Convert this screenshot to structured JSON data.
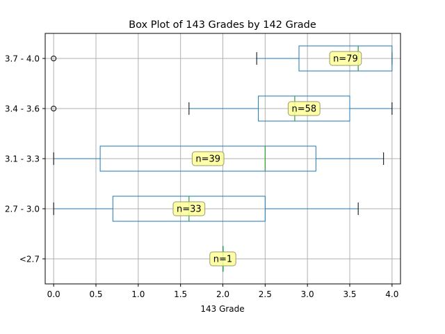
{
  "chart_data": {
    "type": "box",
    "orientation": "horizontal",
    "title": "Box Plot of 143 Grades by 142 Grade",
    "xlabel": "143 Grade",
    "ylabel": "",
    "xlim": [
      -0.1,
      4.1
    ],
    "xticks": [
      0.0,
      0.5,
      1.0,
      1.5,
      2.0,
      2.5,
      3.0,
      3.5,
      4.0
    ],
    "xtick_labels": [
      "0.0",
      "0.5",
      "1.0",
      "1.5",
      "2.0",
      "2.5",
      "3.0",
      "3.5",
      "4.0"
    ],
    "grid": true,
    "colors": {
      "box": "#1f77b4",
      "median": "#2ca02c",
      "grid": "#b0b0b0",
      "annotation_fill": "#ffff99",
      "annotation_stroke": "#9a9a6a"
    },
    "categories": [
      "<2.7",
      "2.7 - 3.0",
      "3.1 - 3.3",
      "3.4 - 3.6",
      "3.7 - 4.0"
    ],
    "category_labels": [
      "<2.7",
      "2.7 - 3.0",
      "3.1 - 3.3",
      "3.4 - 3.6",
      "3.7 - 4.0"
    ],
    "boxes": [
      {
        "category": "<2.7",
        "whisker_low": 2.0,
        "q1": 2.0,
        "median": 2.0,
        "q3": 2.0,
        "whisker_high": 2.0,
        "outliers": [],
        "n_label": "n=1",
        "n": 1
      },
      {
        "category": "2.7 - 3.0",
        "whisker_low": 0.0,
        "q1": 0.7,
        "median": 1.6,
        "q3": 2.5,
        "whisker_high": 3.6,
        "outliers": [],
        "n_label": "n=33",
        "n": 33
      },
      {
        "category": "3.1 - 3.3",
        "whisker_low": 0.0,
        "q1": 0.55,
        "median": 2.5,
        "q3": 3.1,
        "whisker_high": 3.9,
        "outliers": [],
        "n_label": "n=39",
        "n": 39
      },
      {
        "category": "3.4 - 3.6",
        "whisker_low": 1.6,
        "q1": 2.42,
        "median": 2.85,
        "q3": 3.5,
        "whisker_high": 4.0,
        "outliers": [
          0.0
        ],
        "n_label": "n=58",
        "n": 58
      },
      {
        "category": "3.7 - 4.0",
        "whisker_low": 2.4,
        "q1": 2.9,
        "median": 3.6,
        "q3": 4.0,
        "whisker_high": 4.0,
        "outliers": [
          0.0
        ],
        "n_label": "n=79",
        "n": 79
      }
    ]
  }
}
